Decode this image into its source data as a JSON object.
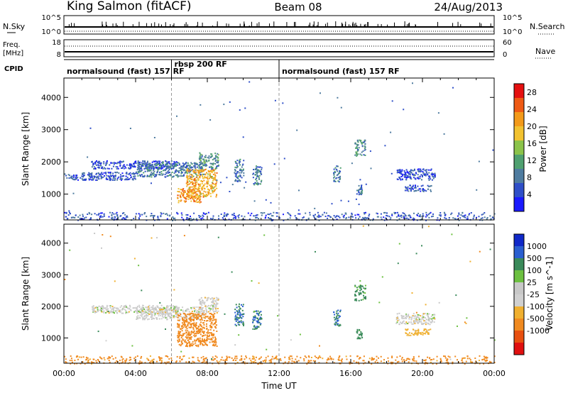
{
  "header": {
    "site": "King Salmon (fitACF)",
    "beam": "Beam 08",
    "date": "24/Aug/2013"
  },
  "noise_panel": {
    "left_label": "N.Sky",
    "right_label": "N.Search",
    "left_ticks": [
      "10^5",
      "10^0"
    ],
    "right_ticks": [
      "10^5",
      "10^0"
    ]
  },
  "freq_panel": {
    "left_label_1": "Freq.",
    "left_label_2": "[MHz]",
    "right_label": "Nave",
    "left_ticks": [
      "18",
      "8"
    ],
    "right_ticks": [
      "60",
      "0"
    ]
  },
  "cpid": {
    "label": "CPID",
    "segments": [
      {
        "name": "normalsound (fast) 157 RF",
        "start": 0,
        "end": 6.0
      },
      {
        "name": "rbsp 200 RF",
        "start": 6.0,
        "end": 12.0
      },
      {
        "name": "normalsound (fast) 157 RF",
        "start": 12.0,
        "end": 24.0
      }
    ]
  },
  "chart_data": [
    {
      "type": "heatmap",
      "panel": "power",
      "xlabel": "",
      "ylabel": "Slant Range [km]",
      "xlim": [
        0,
        24
      ],
      "ylim": [
        200,
        4600
      ],
      "yticks": [
        1000,
        2000,
        3000,
        4000
      ],
      "colorbar": {
        "label": "Power [dB]",
        "ticks": [
          "4",
          "8",
          "12",
          "16",
          "20",
          "24",
          "28"
        ],
        "range": [
          0,
          30
        ]
      },
      "scatter_regions": [
        {
          "t0": 0.0,
          "t1": 24.0,
          "r0": 200,
          "r1": 450,
          "value": 6
        },
        {
          "t0": 1.5,
          "t1": 6.3,
          "r0": 1800,
          "r1": 2050,
          "value": 5
        },
        {
          "t0": 0.0,
          "t1": 4.0,
          "r0": 1450,
          "r1": 1700,
          "value": 6
        },
        {
          "t0": 4.0,
          "t1": 7.8,
          "r0": 1550,
          "r1": 2000,
          "value": 8
        },
        {
          "t0": 6.3,
          "t1": 7.6,
          "r0": 750,
          "r1": 1200,
          "value": 22
        },
        {
          "t0": 6.8,
          "t1": 8.5,
          "r0": 900,
          "r1": 1800,
          "value": 20
        },
        {
          "t0": 7.5,
          "t1": 8.6,
          "r0": 1800,
          "r1": 2300,
          "value": 10
        },
        {
          "t0": 9.5,
          "t1": 10.0,
          "r0": 1400,
          "r1": 2100,
          "value": 8
        },
        {
          "t0": 10.5,
          "t1": 11.0,
          "r0": 1300,
          "r1": 1900,
          "value": 8
        },
        {
          "t0": 15.0,
          "t1": 15.4,
          "r0": 1400,
          "r1": 1900,
          "value": 8
        },
        {
          "t0": 16.2,
          "t1": 16.8,
          "r0": 2200,
          "r1": 2700,
          "value": 10
        },
        {
          "t0": 16.3,
          "t1": 16.6,
          "r0": 1000,
          "r1": 1300,
          "value": 8
        },
        {
          "t0": 18.5,
          "t1": 20.7,
          "r0": 1450,
          "r1": 1800,
          "value": 5
        },
        {
          "t0": 19.0,
          "t1": 20.5,
          "r0": 1100,
          "r1": 1300,
          "value": 6
        }
      ]
    },
    {
      "type": "heatmap",
      "panel": "velocity",
      "xlabel": "Time UT",
      "ylabel": "Slant Range [km]",
      "xlim": [
        0,
        24
      ],
      "ylim": [
        200,
        4600
      ],
      "xticks": [
        "00:00",
        "04:00",
        "08:00",
        "12:00",
        "16:00",
        "20:00",
        "00:00"
      ],
      "yticks": [
        1000,
        2000,
        3000,
        4000
      ],
      "colorbar": {
        "label": "Velocity [m s^-1]",
        "ticks": [
          "1000",
          "500",
          "100",
          "25",
          "-25",
          "-100",
          "-500",
          "-1000"
        ],
        "range": [
          -1000,
          1000
        ]
      },
      "scatter_regions": [
        {
          "t0": 0.0,
          "t1": 24.0,
          "r0": 200,
          "r1": 450,
          "value": -150
        },
        {
          "t0": 1.5,
          "t1": 6.3,
          "r0": 1800,
          "r1": 2050,
          "value": 0
        },
        {
          "t0": 4.0,
          "t1": 7.8,
          "r0": 1600,
          "r1": 2000,
          "value": 0
        },
        {
          "t0": 6.3,
          "t1": 8.5,
          "r0": 750,
          "r1": 1800,
          "value": -300
        },
        {
          "t0": 7.5,
          "t1": 8.6,
          "r0": 1800,
          "r1": 2300,
          "value": 0
        },
        {
          "t0": 9.5,
          "t1": 10.0,
          "r0": 1400,
          "r1": 2100,
          "value": 500
        },
        {
          "t0": 10.5,
          "t1": 11.0,
          "r0": 1300,
          "r1": 1900,
          "value": 500
        },
        {
          "t0": 15.0,
          "t1": 15.4,
          "r0": 1400,
          "r1": 1900,
          "value": 500
        },
        {
          "t0": 16.2,
          "t1": 16.8,
          "r0": 2200,
          "r1": 2700,
          "value": 150
        },
        {
          "t0": 16.3,
          "t1": 16.6,
          "r0": 1000,
          "r1": 1300,
          "value": 150
        },
        {
          "t0": 18.5,
          "t1": 20.7,
          "r0": 1450,
          "r1": 1800,
          "value": 0
        },
        {
          "t0": 19.0,
          "t1": 20.5,
          "r0": 1100,
          "r1": 1300,
          "value": -50
        }
      ]
    }
  ]
}
